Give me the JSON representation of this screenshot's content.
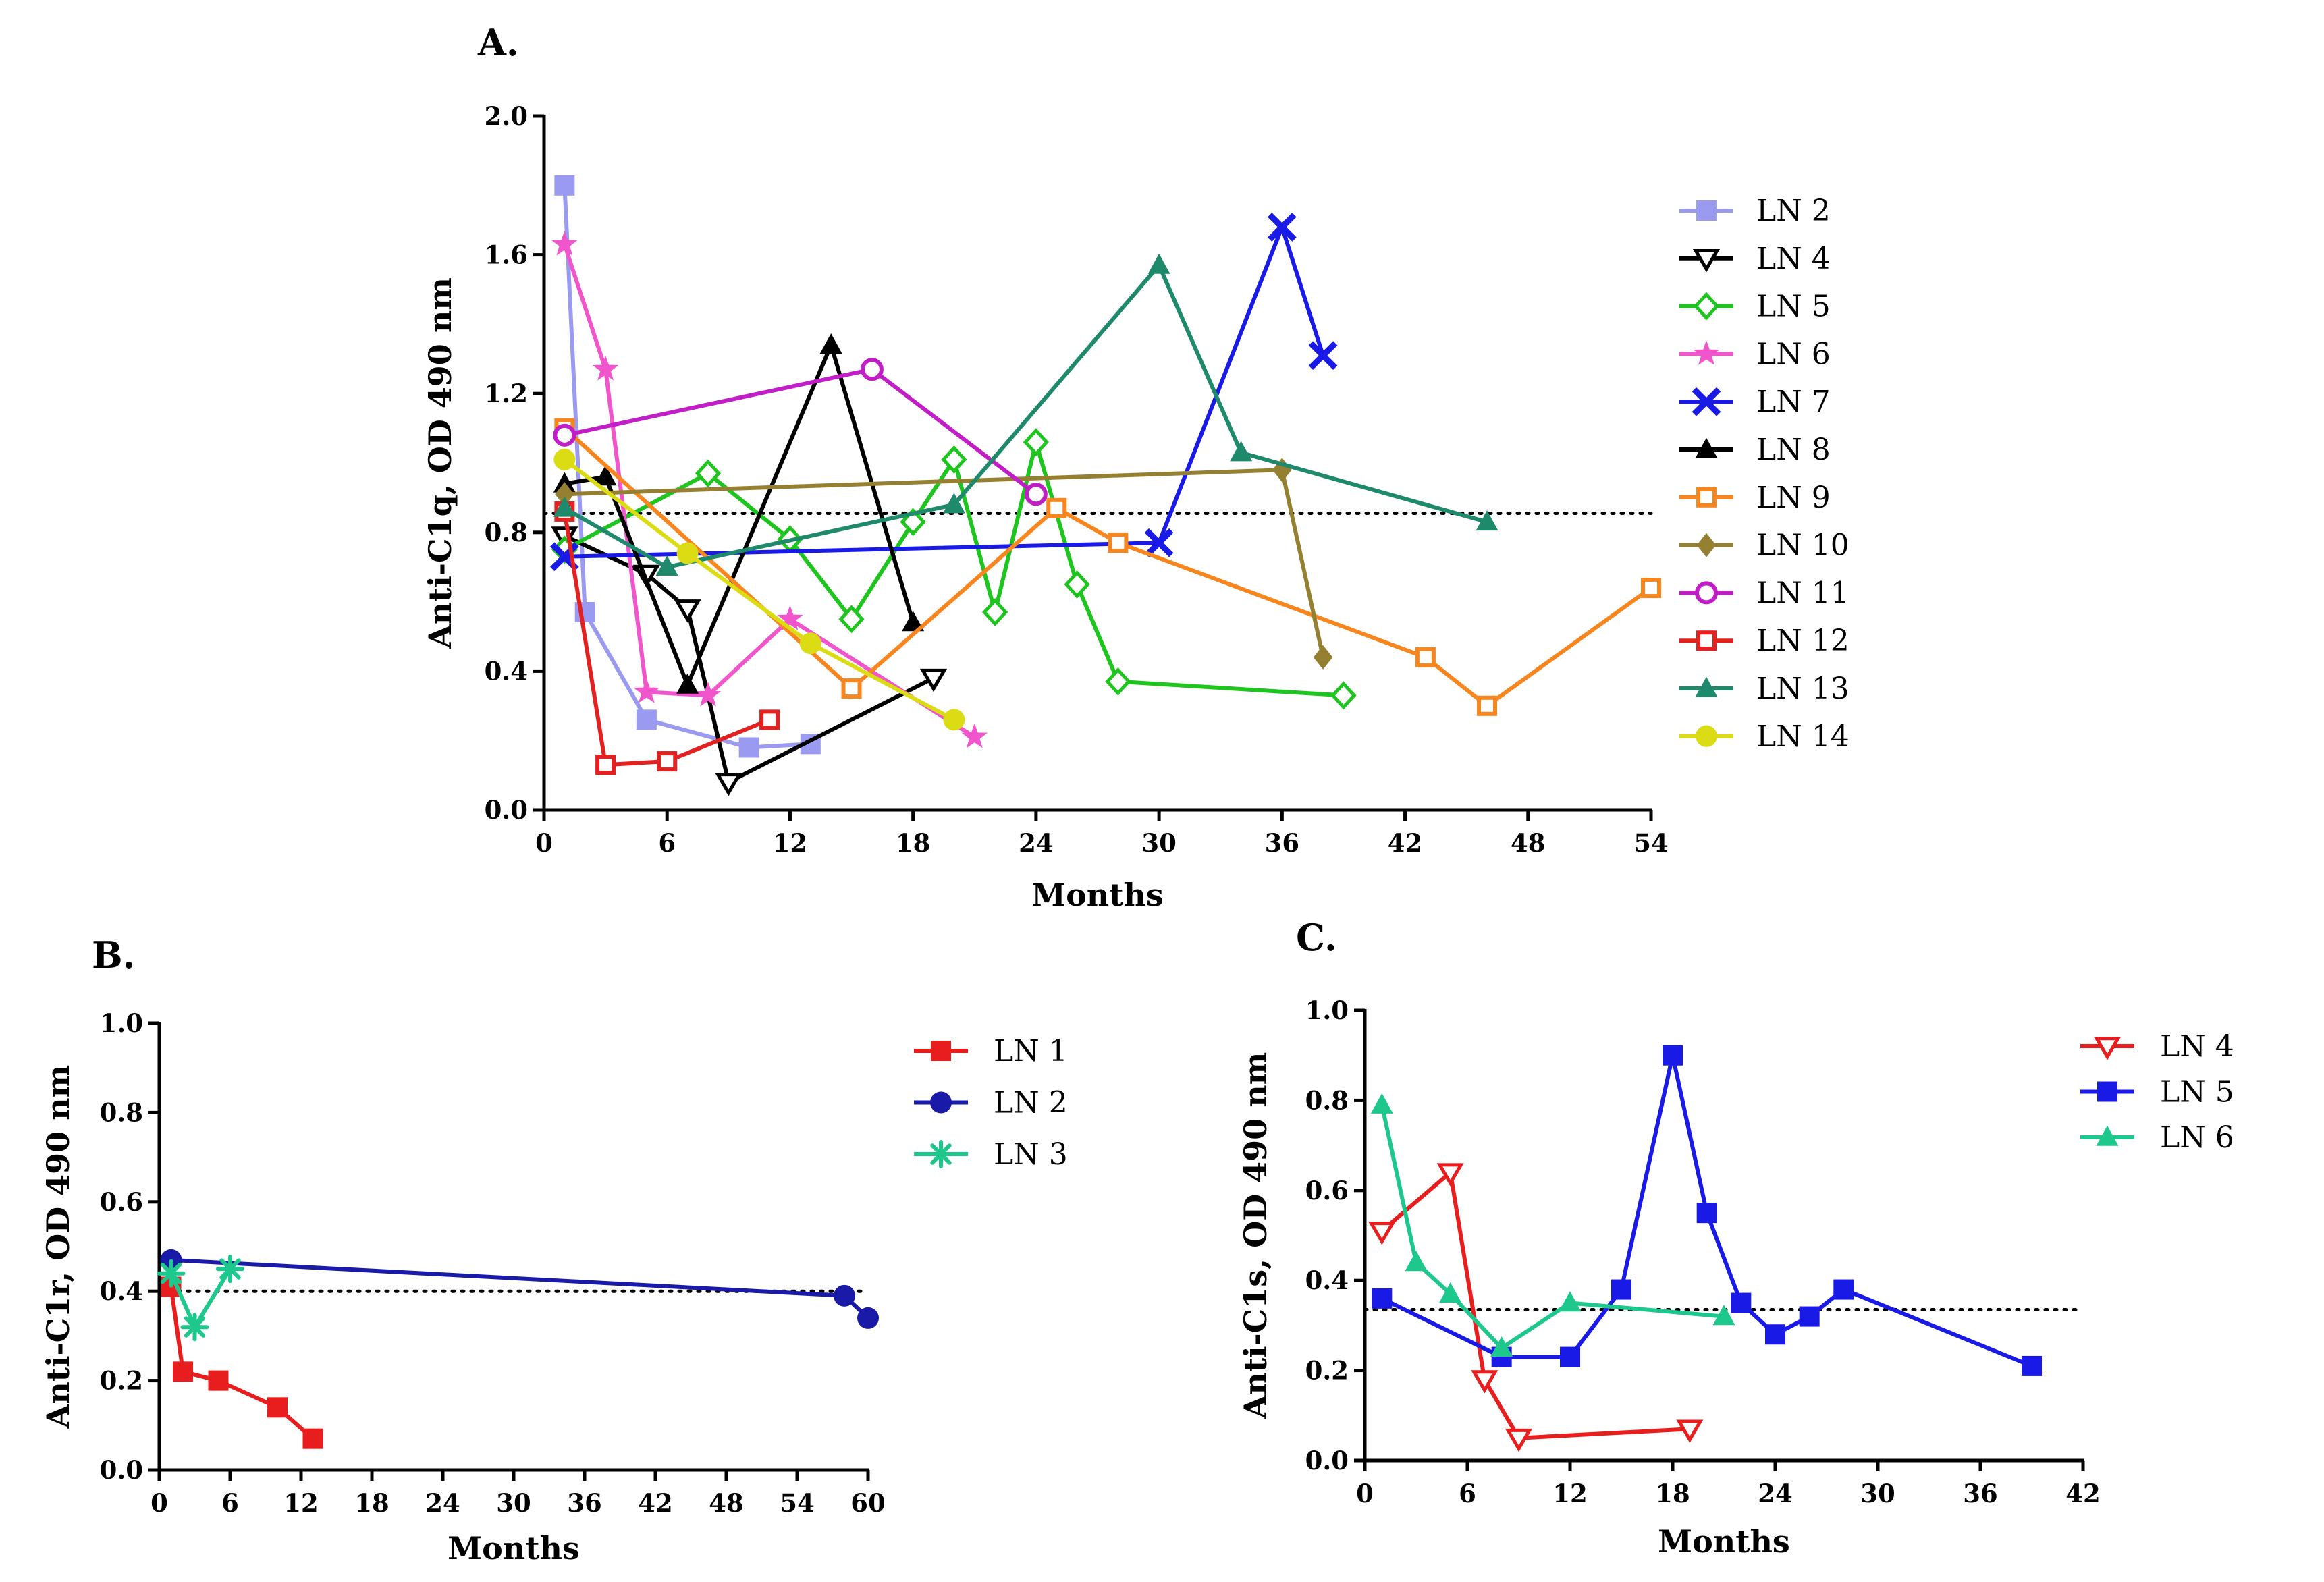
{
  "chart_data": [
    {
      "id": "A",
      "panel_label": "A.",
      "type": "line",
      "xlabel": "Months",
      "ylabel": "Anti-C1q, OD 490 nm",
      "xlim": [
        0,
        54
      ],
      "ylim": [
        0,
        2.0
      ],
      "xticks": [
        0,
        6,
        12,
        18,
        24,
        30,
        36,
        42,
        48,
        54
      ],
      "yticks": [
        0,
        0.4,
        0.8,
        1.2,
        1.6,
        2.0
      ],
      "yticklabels": [
        "0.0",
        "0.4",
        "0.8",
        "1.2",
        "1.6",
        "2.0"
      ],
      "cutoff": 0.855,
      "legend_position": "right",
      "series": [
        {
          "name": "LN 2",
          "color": "#9a9af0",
          "marker": "square-filled",
          "x": [
            1,
            2,
            5,
            10,
            13
          ],
          "y": [
            1.8,
            0.57,
            0.26,
            0.18,
            0.19
          ]
        },
        {
          "name": "LN 4",
          "color": "#000000",
          "marker": "triangle-down-open",
          "x": [
            1,
            5,
            7,
            9,
            19
          ],
          "y": [
            0.79,
            0.68,
            0.58,
            0.08,
            0.38
          ]
        },
        {
          "name": "LN 5",
          "color": "#1ec51e",
          "marker": "diamond-open",
          "x": [
            1,
            8,
            12,
            15,
            18,
            20,
            22,
            24,
            26,
            28,
            39
          ],
          "y": [
            0.75,
            0.97,
            0.78,
            0.55,
            0.83,
            1.01,
            0.57,
            1.06,
            0.65,
            0.37,
            0.33
          ]
        },
        {
          "name": "LN 6",
          "color": "#f055cc",
          "marker": "star",
          "x": [
            1,
            3,
            5,
            8,
            12,
            21
          ],
          "y": [
            1.63,
            1.27,
            0.34,
            0.33,
            0.55,
            0.21
          ]
        },
        {
          "name": "LN 7",
          "color": "#1a1ae6",
          "marker": "x",
          "x": [
            1,
            30,
            36,
            38
          ],
          "y": [
            0.73,
            0.77,
            1.68,
            1.31
          ]
        },
        {
          "name": "LN 8",
          "color": "#000000",
          "marker": "triangle-up-filled",
          "x": [
            1,
            3,
            7,
            14,
            18
          ],
          "y": [
            0.94,
            0.96,
            0.36,
            1.34,
            0.54
          ]
        },
        {
          "name": "LN 9",
          "color": "#f7861e",
          "marker": "square-open",
          "x": [
            1,
            15,
            25,
            28,
            43,
            46,
            54
          ],
          "y": [
            1.1,
            0.35,
            0.87,
            0.77,
            0.44,
            0.3,
            0.64
          ]
        },
        {
          "name": "LN 10",
          "color": "#958032",
          "marker": "diamond-filled",
          "x": [
            1,
            36,
            38
          ],
          "y": [
            0.91,
            0.98,
            0.44
          ]
        },
        {
          "name": "LN 11",
          "color": "#c21ec8",
          "marker": "circle-open",
          "x": [
            1,
            16,
            24
          ],
          "y": [
            1.08,
            1.27,
            0.91
          ]
        },
        {
          "name": "LN 12",
          "color": "#e32121",
          "marker": "square-open",
          "x": [
            1,
            3,
            6,
            11
          ],
          "y": [
            0.86,
            0.13,
            0.14,
            0.26
          ]
        },
        {
          "name": "LN 13",
          "color": "#1f8a6b",
          "marker": "triangle-up-filled",
          "x": [
            1,
            6,
            20,
            30,
            34,
            46
          ],
          "y": [
            0.87,
            0.7,
            0.88,
            1.57,
            1.03,
            0.83
          ]
        },
        {
          "name": "LN 14",
          "color": "#dcdc14",
          "marker": "circle-filled",
          "x": [
            1,
            7,
            13,
            20
          ],
          "y": [
            1.01,
            0.74,
            0.48,
            0.26
          ]
        }
      ]
    },
    {
      "id": "B",
      "panel_label": "B.",
      "type": "line",
      "xlabel": "Months",
      "ylabel": "Anti-C1r, OD 490 nm",
      "xlim": [
        0,
        60
      ],
      "ylim": [
        0,
        1.0
      ],
      "xticks": [
        0,
        6,
        12,
        18,
        24,
        30,
        36,
        42,
        48,
        54,
        60
      ],
      "yticks": [
        0,
        0.2,
        0.4,
        0.6,
        0.8,
        1.0
      ],
      "yticklabels": [
        "0.0",
        "0.2",
        "0.4",
        "0.6",
        "0.8",
        "1.0"
      ],
      "cutoff": 0.4,
      "legend_position": "right",
      "series": [
        {
          "name": "LN 1",
          "color": "#e81e1e",
          "marker": "square-filled",
          "x": [
            1,
            2,
            5,
            10,
            13
          ],
          "y": [
            0.41,
            0.22,
            0.2,
            0.14,
            0.07
          ]
        },
        {
          "name": "LN 2",
          "color": "#1a1aa8",
          "marker": "circle-filled",
          "x": [
            1,
            58,
            60
          ],
          "y": [
            0.47,
            0.39,
            0.34
          ]
        },
        {
          "name": "LN 3",
          "color": "#1ec88c",
          "marker": "asterisk",
          "x": [
            1,
            3,
            6
          ],
          "y": [
            0.44,
            0.32,
            0.45
          ]
        }
      ]
    },
    {
      "id": "C",
      "panel_label": "C.",
      "type": "line",
      "xlabel": "Months",
      "ylabel": "Anti-C1s, OD 490 nm",
      "xlim": [
        0,
        42
      ],
      "ylim": [
        0,
        1.0
      ],
      "xticks": [
        0,
        6,
        12,
        18,
        24,
        30,
        36,
        42
      ],
      "yticks": [
        0,
        0.2,
        0.4,
        0.6,
        0.8,
        1.0
      ],
      "yticklabels": [
        "0.0",
        "0.2",
        "0.4",
        "0.6",
        "0.8",
        "1.0"
      ],
      "cutoff": 0.335,
      "legend_position": "right",
      "series": [
        {
          "name": "LN 4",
          "color": "#e81e1e",
          "marker": "triangle-down-open",
          "x": [
            1,
            5,
            7,
            9,
            19
          ],
          "y": [
            0.51,
            0.64,
            0.18,
            0.05,
            0.07
          ]
        },
        {
          "name": "LN 5",
          "color": "#1a1ae6",
          "marker": "square-filled",
          "x": [
            1,
            8,
            12,
            15,
            18,
            20,
            22,
            24,
            26,
            28,
            39
          ],
          "y": [
            0.36,
            0.23,
            0.23,
            0.38,
            0.9,
            0.55,
            0.35,
            0.28,
            0.32,
            0.38,
            0.21
          ]
        },
        {
          "name": "LN 6",
          "color": "#1ec88c",
          "marker": "triangle-up-filled",
          "x": [
            1,
            3,
            5,
            8,
            12,
            21
          ],
          "y": [
            0.79,
            0.44,
            0.37,
            0.25,
            0.35,
            0.32
          ]
        }
      ]
    }
  ]
}
